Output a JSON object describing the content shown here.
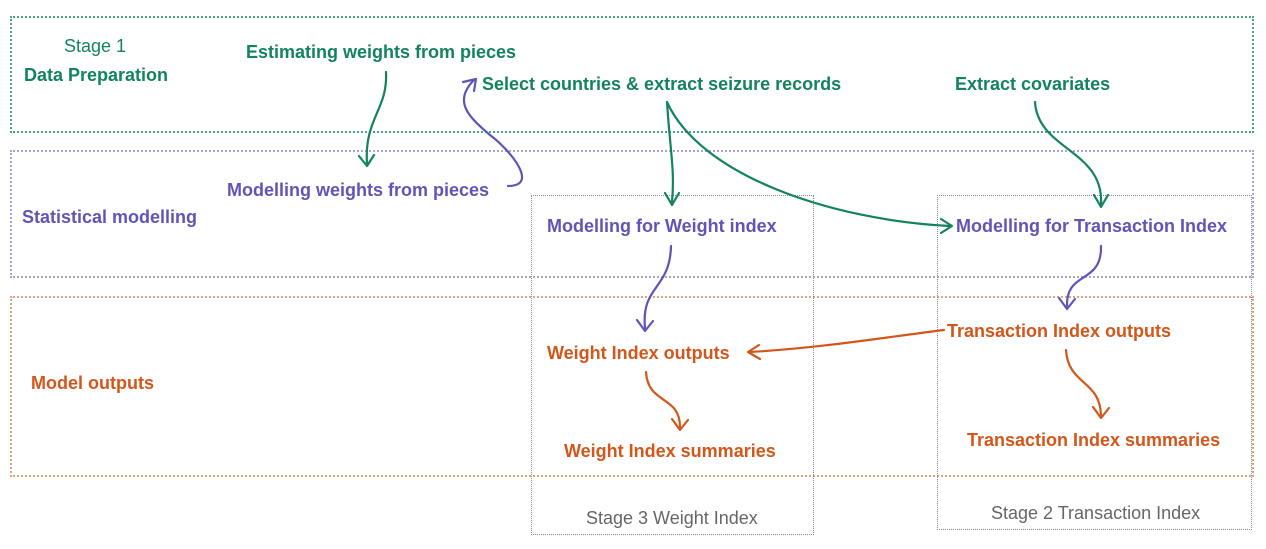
{
  "bands": {
    "prep_stage": "Stage 1",
    "prep_title": "Data Preparation",
    "stat_title": "Statistical modelling",
    "out_title": "Model outputs"
  },
  "columns": {
    "weight_caption": "Stage 3 Weight Index",
    "trans_caption": "Stage 2 Transaction Index"
  },
  "nodes": {
    "estimating_weights": "Estimating weights from pieces",
    "select_countries": "Select countries & extract seizure records",
    "extract_covariates": "Extract covariates",
    "modelling_weights_pieces": "Modelling weights from pieces",
    "modelling_weight_index": "Modelling for Weight index",
    "modelling_transaction_index": "Modelling for Transaction Index",
    "weight_index_outputs": "Weight Index outputs",
    "transaction_index_outputs": "Transaction Index outputs",
    "weight_index_summaries": "Weight Index summaries",
    "transaction_index_summaries": "Transaction Index summaries"
  },
  "colors": {
    "green": "#13835f",
    "purple": "#5f55b6",
    "orange": "#d3561a"
  }
}
